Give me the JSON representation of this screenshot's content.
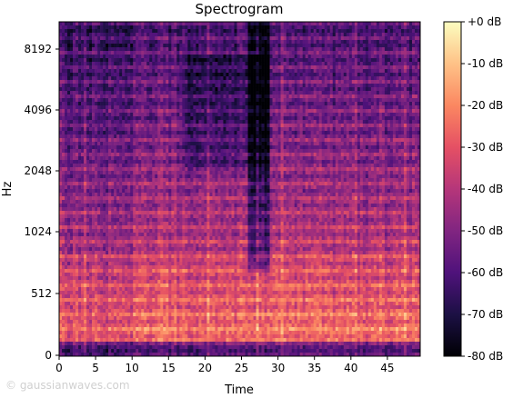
{
  "chart_data": {
    "type": "heatmap",
    "title": "Spectrogram",
    "xlabel": "Time",
    "ylabel": "Hz",
    "xlim": [
      0,
      49.5
    ],
    "ylim_labels": [
      "0",
      "512",
      "1024",
      "2048",
      "4096",
      "8192"
    ],
    "x_ticks": [
      0,
      5,
      10,
      15,
      20,
      25,
      30,
      35,
      40,
      45
    ],
    "y_scale": "symlog",
    "colormap": "magma",
    "colorbar": {
      "ticks": [
        "+0 dB",
        "-10 dB",
        "-20 dB",
        "-30 dB",
        "-40 dB",
        "-50 dB",
        "-60 dB",
        "-70 dB",
        "-80 dB"
      ],
      "range_db": [
        -80,
        0
      ]
    },
    "description_values": {
      "low_band_hz": [
        0,
        700
      ],
      "low_band_level_db": -25,
      "mid_band_level_db": -45,
      "high_band_level_db": -65,
      "quiet_gap_time": [
        26,
        29
      ]
    }
  },
  "watermark": "© gaussianwaves.com",
  "colors": {
    "magma_stops": [
      "#000004",
      "#1c1044",
      "#4f127b",
      "#812581",
      "#b5367a",
      "#e55064",
      "#fb8761",
      "#fec287",
      "#fcfdbf"
    ]
  }
}
